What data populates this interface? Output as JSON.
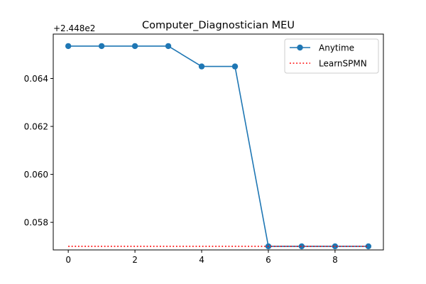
{
  "chart_data": {
    "type": "line",
    "title": "Computer_Diagnostician MEU",
    "offset_label": "+2.448e2",
    "xlabel": "",
    "ylabel": "",
    "xlim": [
      -0.45,
      9.45
    ],
    "ylim": [
      0.05685,
      0.06585
    ],
    "x_ticks": [
      0,
      2,
      4,
      6,
      8
    ],
    "y_ticks": [
      0.058,
      0.06,
      0.062,
      0.064
    ],
    "y_tick_labels": [
      "0.058",
      "0.060",
      "0.062",
      "0.064"
    ],
    "grid": false,
    "legend_position": "top-right",
    "series": [
      {
        "name": "Anytime",
        "color": "#1f77b4",
        "style": "solid-with-circle-markers",
        "x": [
          0,
          1,
          2,
          3,
          4,
          5,
          6,
          7,
          8,
          9
        ],
        "y": [
          0.06535,
          0.06535,
          0.06535,
          0.06535,
          0.0645,
          0.0645,
          0.057,
          0.057,
          0.057,
          0.057
        ]
      },
      {
        "name": "LearnSPMN",
        "color": "#ff0000",
        "style": "dotted",
        "x": [
          0,
          9
        ],
        "y": [
          0.057,
          0.057
        ]
      }
    ]
  }
}
